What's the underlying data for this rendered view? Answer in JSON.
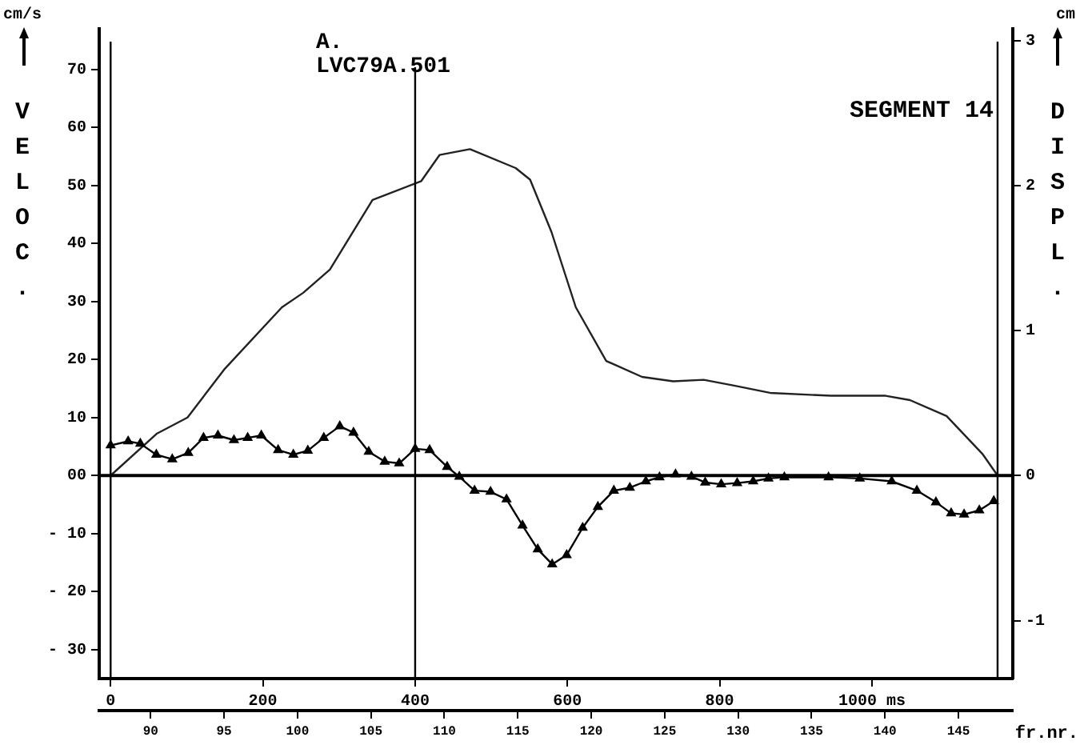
{
  "chart_data": {
    "type": "line",
    "title": "SEGMENT 14",
    "ylabel": "VELOC.",
    "y2label": "DISPL.",
    "x2label": "fr.nr.",
    "annotations": [
      "cm/s",
      "cm"
    ],
    "xlim": [
      -15,
      1185
    ],
    "xticks": [
      0,
      200,
      400,
      600,
      800,
      {
        "value": 1000,
        "label": "1000 ms"
      }
    ],
    "x2lim": [
      86.5,
      148.7
    ],
    "x2ticks": [
      90,
      95,
      100,
      105,
      110,
      115,
      120,
      125,
      130,
      135,
      140,
      145
    ],
    "ylim": [
      -35,
      77
    ],
    "yticks": [
      {
        "value": -30,
        "label": "- 30"
      },
      {
        "value": -20,
        "label": "- 20"
      },
      {
        "value": -10,
        "label": "- 10"
      },
      {
        "value": 0,
        "label": "00"
      },
      10,
      20,
      30,
      40,
      50,
      60,
      70
    ],
    "y2lim": [
      -1.4,
      3.08
    ],
    "y2ticks": [
      {
        "value": -1,
        "label": "-1"
      },
      0,
      1,
      2,
      3
    ],
    "grid": false,
    "legend": false,
    "ref_lines": [
      {
        "axis": "y",
        "value": 0
      },
      {
        "axis": "x",
        "value": 0
      },
      {
        "axis": "x",
        "value": 400,
        "label": "A. LVC79A.501"
      },
      {
        "axis": "x",
        "value": 1165
      }
    ],
    "series": [
      {
        "color": "#000000",
        "marker": "triangle",
        "x": [
          0,
          23,
          39,
          60,
          81,
          102,
          122,
          141,
          162,
          180,
          198,
          220,
          240,
          259,
          280,
          301,
          319,
          339,
          360,
          379,
          400,
          419,
          442,
          458,
          478,
          499,
          520,
          541,
          561,
          580,
          599,
          620,
          640,
          661,
          682,
          703,
          721,
          742,
          763,
          781,
          802,
          823,
          844,
          864,
          885,
          943,
          984,
          1026,
          1059,
          1084,
          1104,
          1121,
          1141,
          1160
        ],
        "values": [
          5.2,
          5.9,
          5.5,
          3.6,
          2.8,
          3.9,
          6.5,
          6.9,
          6.1,
          6.5,
          6.9,
          4.4,
          3.6,
          4.3,
          6.5,
          8.5,
          7.4,
          4.1,
          2.4,
          2.1,
          4.6,
          4.4,
          1.5,
          -0.2,
          -2.6,
          -2.8,
          -4.1,
          -8.6,
          -12.7,
          -15.3,
          -13.7,
          -9.0,
          -5.4,
          -2.6,
          -2.1,
          -1.0,
          -0.3,
          0.2,
          -0.2,
          -1.2,
          -1.5,
          -1.3,
          -1.0,
          -0.5,
          -0.3,
          -0.3,
          -0.5,
          -1.0,
          -2.6,
          -4.6,
          -6.5,
          -6.7,
          -6.0,
          -4.4
        ]
      },
      {
        "color": "#222222",
        "axis": "y2",
        "marker": "none",
        "x": [
          0,
          61,
          101,
          149,
          225,
          253,
          288,
          344,
          408,
          432,
          472,
          532,
          551,
          579,
          611,
          651,
          698,
          739,
          779,
          819,
          866,
          946,
          1018,
          1050,
          1098,
          1145,
          1165
        ],
        "values": [
          0,
          0.29,
          0.4,
          0.73,
          1.16,
          1.26,
          1.42,
          1.9,
          2.03,
          2.21,
          2.25,
          2.12,
          2.04,
          1.68,
          1.16,
          0.79,
          0.68,
          0.65,
          0.66,
          0.62,
          0.57,
          0.55,
          0.55,
          0.52,
          0.41,
          0.15,
          0
        ]
      }
    ]
  }
}
